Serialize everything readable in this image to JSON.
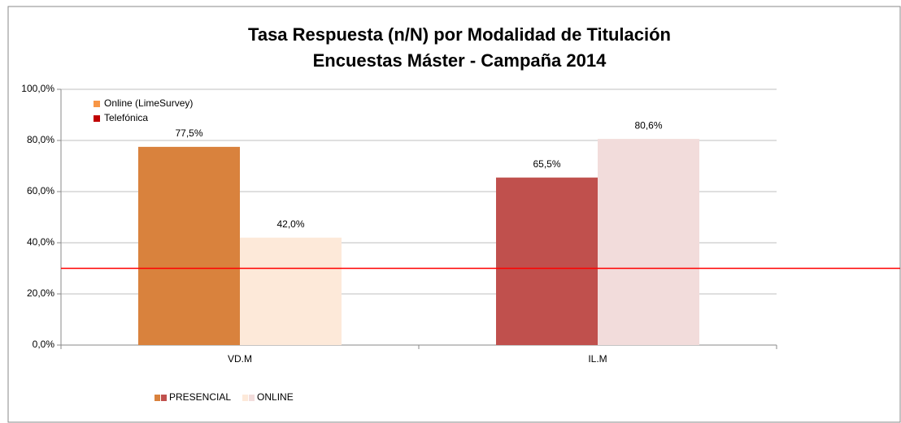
{
  "chart_data": {
    "type": "bar",
    "title": [
      "Tasa Respuesta (n/N) por Modalidad de  Titulación",
      "Encuestas Máster - Campaña 2014"
    ],
    "categories": [
      "VD.M",
      "IL.M"
    ],
    "series": [
      {
        "name": "PRESENCIAL",
        "colors": [
          "#d9823d",
          "#c0504d"
        ],
        "values": [
          77.5,
          65.5
        ],
        "value_labels": [
          "77,5%",
          "65,5%"
        ]
      },
      {
        "name": "ONLINE",
        "colors": [
          "#fde9d9",
          "#f2dcdb"
        ],
        "values": [
          42.0,
          80.6
        ],
        "value_labels": [
          "42,0%",
          "80,6%"
        ]
      }
    ],
    "legend_top": [
      {
        "name": "Online (LimeSurvey)",
        "color": "#f79646"
      },
      {
        "name": "Telefónica",
        "color": "#c00000"
      }
    ],
    "reference_line": {
      "value": 30,
      "color": "#ff0000"
    },
    "ylim": [
      0,
      100
    ],
    "yticks": [
      {
        "value": 0,
        "label": "0,0%"
      },
      {
        "value": 20,
        "label": "20,0%"
      },
      {
        "value": 40,
        "label": "40,0%"
      },
      {
        "value": 60,
        "label": "60,0%"
      },
      {
        "value": 80,
        "label": "80,0%"
      },
      {
        "value": 100,
        "label": "100,0%"
      }
    ],
    "grid": true
  }
}
